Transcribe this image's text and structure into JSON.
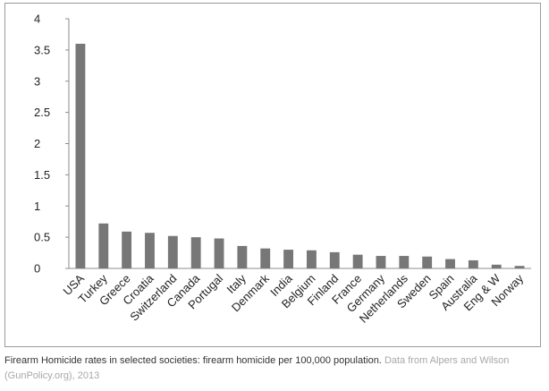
{
  "chart_data": {
    "type": "bar",
    "categories": [
      "USA",
      "Turkey",
      "Greece",
      "Croatia",
      "Switzerland",
      "Canada",
      "Portugal",
      "Italy",
      "Denmark",
      "India",
      "Belgium",
      "Finland",
      "France",
      "Germany",
      "Netherlands",
      "Sweden",
      "Spain",
      "Australia",
      "Eng & W",
      "Norway"
    ],
    "values": [
      3.6,
      0.72,
      0.59,
      0.57,
      0.52,
      0.5,
      0.48,
      0.36,
      0.32,
      0.3,
      0.29,
      0.26,
      0.22,
      0.2,
      0.2,
      0.19,
      0.15,
      0.13,
      0.06,
      0.04
    ],
    "ylim": [
      0,
      4
    ],
    "yticks": [
      "0",
      "0.5",
      "1",
      "1.5",
      "2",
      "2.5",
      "3",
      "3.5",
      "4"
    ],
    "ytick_values": [
      0,
      0.5,
      1,
      1.5,
      2,
      2.5,
      3,
      3.5,
      4
    ],
    "bar_color": "#777777",
    "grid": false,
    "legend": "none"
  },
  "caption": {
    "text": "Firearm Homicide rates in selected societies: firearm homicide per 100,000 population. ",
    "source": "Data from Alpers and Wilson (GunPolicy.org), 2013"
  }
}
